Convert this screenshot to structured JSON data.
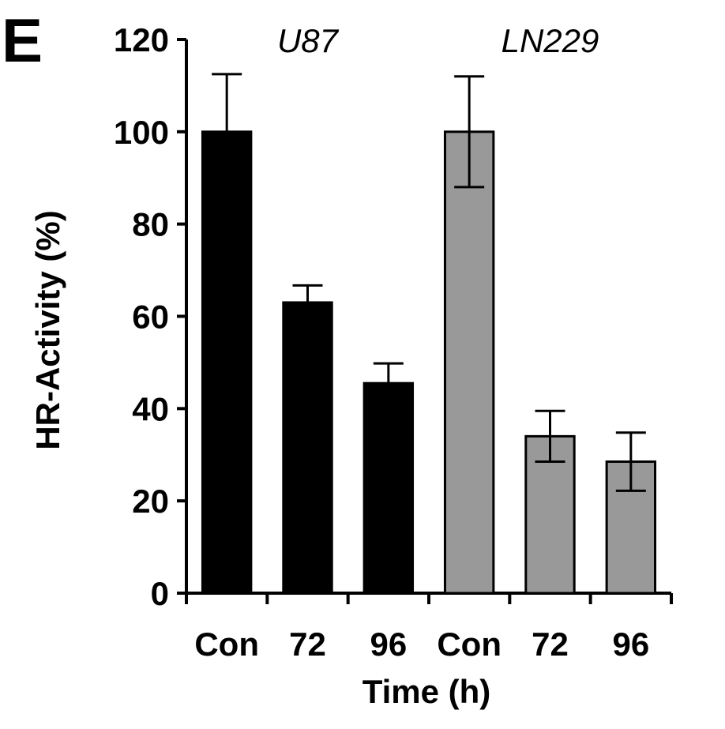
{
  "panel_label": "E",
  "chart_data": {
    "type": "bar",
    "title": "",
    "ylabel": "HR-Activity (%)",
    "xlabel": "Time (h)",
    "ylim": [
      0,
      120
    ],
    "yticks": [
      0,
      20,
      40,
      60,
      80,
      100,
      120
    ],
    "groups": [
      {
        "name": "U87",
        "color": "#000000",
        "categories": [
          "Con",
          "72",
          "96"
        ],
        "values": [
          100,
          63,
          45.5
        ],
        "errors": [
          12.5,
          3.7,
          4.3
        ]
      },
      {
        "name": "LN229",
        "color": "#999999",
        "categories": [
          "Con",
          "72",
          "96"
        ],
        "values": [
          100,
          34,
          28.5
        ],
        "errors": [
          12,
          5.5,
          6.3
        ]
      }
    ]
  }
}
